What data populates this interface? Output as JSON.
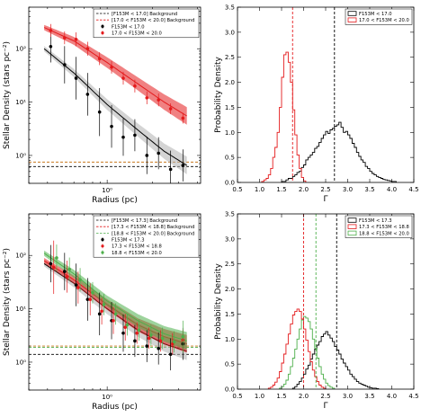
{
  "chart_data": [
    {
      "id": "density_top",
      "type": "scatter",
      "xlabel": "Radius (pc)",
      "ylabel": "Stellar Density (stars pc⁻²)",
      "xscale": "log",
      "yscale": "log",
      "xlim": [
        0.3,
        4.2
      ],
      "ylim": [
        0.3,
        600
      ],
      "x_ticks": [
        {
          "v": 1,
          "label": "10⁰"
        }
      ],
      "y_ticks": [
        {
          "v": 1,
          "label": "10⁰"
        },
        {
          "v": 10,
          "label": "10¹"
        },
        {
          "v": 100,
          "label": "10²"
        }
      ],
      "legend_position": "top-right",
      "legend": [
        {
          "label": "[F153M < 17.0] Background",
          "kind": "dashed",
          "color": "#000000"
        },
        {
          "label": "[17.0 < F153M < 20.0] Background",
          "kind": "dashed",
          "color": "#e41a1c"
        },
        {
          "label": "F153M < 17.0",
          "kind": "errorbar",
          "color": "#000000"
        },
        {
          "label": "17.0 < F153M < 20.0",
          "kind": "errorbar",
          "color": "#e41a1c"
        }
      ],
      "hlines": [
        {
          "y": 0.62,
          "color": "#000000"
        },
        {
          "y": 0.75,
          "color": "#c8781e"
        }
      ],
      "series": [
        {
          "name": "F153M < 17.0",
          "color": "#000000",
          "band": "#b0b0b0",
          "x": [
            0.42,
            0.52,
            0.62,
            0.74,
            0.89,
            1.07,
            1.28,
            1.53,
            1.84,
            2.2,
            2.65,
            3.2
          ],
          "y": [
            110,
            50,
            28,
            14,
            6.5,
            3.5,
            2.2,
            2.4,
            1.0,
            1.1,
            0.55,
            0.65
          ],
          "yerr": [
            0.3,
            0.35,
            0.4,
            0.4,
            0.45,
            0.4,
            0.35,
            0.3,
            0.35,
            0.3,
            0.35,
            0.3
          ],
          "fit": [
            [
              0.38,
              100
            ],
            [
              0.6,
              35
            ],
            [
              1.0,
              9
            ],
            [
              1.6,
              3
            ],
            [
              2.4,
              1.2
            ],
            [
              3.4,
              0.65
            ]
          ]
        },
        {
          "name": "17.0 < F153M < 20.0",
          "color": "#e41a1c",
          "band": "#e41a1c",
          "x": [
            0.42,
            0.52,
            0.62,
            0.74,
            0.89,
            1.07,
            1.28,
            1.53,
            1.84,
            2.2,
            2.65,
            3.2
          ],
          "y": [
            220,
            160,
            150,
            100,
            65,
            45,
            28,
            20,
            12,
            11,
            7.5,
            5
          ],
          "yerr": [
            0.12,
            0.12,
            0.13,
            0.13,
            0.12,
            0.12,
            0.12,
            0.12,
            0.12,
            0.12,
            0.1,
            0.1
          ],
          "fit": [
            [
              0.38,
              250
            ],
            [
              0.6,
              140
            ],
            [
              1.0,
              55
            ],
            [
              1.6,
              22
            ],
            [
              2.4,
              10
            ],
            [
              3.4,
              5.5
            ]
          ]
        }
      ]
    },
    {
      "id": "gamma_top",
      "type": "histogram",
      "xlabel": "Γ",
      "ylabel": "Probability Density",
      "xlim": [
        0.5,
        4.5
      ],
      "ylim": [
        0,
        3.5
      ],
      "x_ticks": [
        "0.5",
        "1.0",
        "1.5",
        "2.0",
        "2.5",
        "3.0",
        "3.5",
        "4.0",
        "4.5"
      ],
      "y_ticks": [
        "0.0",
        "0.5",
        "1.0",
        "1.5",
        "2.0",
        "2.5",
        "3.0",
        "3.5"
      ],
      "legend_position": "top-right",
      "series": [
        {
          "name": "F153M < 17.0",
          "color": "#000000",
          "bin_start": 1.5,
          "bin_width": 0.05,
          "values": [
            0.02,
            0.02,
            0.05,
            0.08,
            0.08,
            0.12,
            0.15,
            0.2,
            0.22,
            0.3,
            0.35,
            0.45,
            0.5,
            0.55,
            0.6,
            0.68,
            0.72,
            0.8,
            0.88,
            0.95,
            1.02,
            0.98,
            1.05,
            1.08,
            1.12,
            1.15,
            1.2,
            1.1,
            1.0,
            1.02,
            0.95,
            0.88,
            0.78,
            0.7,
            0.6,
            0.52,
            0.45,
            0.4,
            0.32,
            0.28,
            0.22,
            0.18,
            0.15,
            0.12,
            0.1,
            0.08,
            0.06,
            0.05,
            0.04,
            0.03,
            0.02,
            0.02
          ]
        },
        {
          "name": "17.0 < F153M < 20.0",
          "color": "#e41a1c",
          "bin_start": 1.05,
          "bin_width": 0.05,
          "values": [
            0.02,
            0.05,
            0.08,
            0.15,
            0.28,
            0.5,
            0.7,
            1.0,
            1.5,
            2.1,
            2.55,
            2.6,
            2.4,
            2.0,
            1.45,
            0.95,
            0.55,
            0.28,
            0.1,
            0.03
          ]
        }
      ],
      "vlines": [
        {
          "x": 1.75,
          "color": "#e41a1c"
        },
        {
          "x": 2.7,
          "color": "#000000"
        }
      ]
    },
    {
      "id": "density_bottom",
      "type": "scatter",
      "xlabel": "Radius (pc)",
      "ylabel": "Stellar Density (stars pc⁻²)",
      "xscale": "log",
      "yscale": "log",
      "xlim": [
        0.3,
        4.2
      ],
      "ylim": [
        0.3,
        600
      ],
      "x_ticks": [
        {
          "v": 1,
          "label": "10⁰"
        }
      ],
      "y_ticks": [
        {
          "v": 1,
          "label": "10⁰"
        },
        {
          "v": 10,
          "label": "10¹"
        },
        {
          "v": 100,
          "label": "10²"
        }
      ],
      "legend_position": "top-right",
      "legend": [
        {
          "label": "[F153M < 17.3] Background",
          "kind": "dashed",
          "color": "#000000"
        },
        {
          "label": "[17.3 < F153M < 18.8] Background",
          "kind": "dashed",
          "color": "#e41a1c"
        },
        {
          "label": "[18.8 < F153M < 20.0] Background",
          "kind": "dashed",
          "color": "#4daf4a"
        },
        {
          "label": "F153M < 17.3",
          "kind": "errorbar",
          "color": "#000000"
        },
        {
          "label": "17.3 < F153M < 18.8",
          "kind": "errorbar",
          "color": "#e41a1c"
        },
        {
          "label": "18.8 < F153M < 20.0",
          "kind": "errorbar",
          "color": "#4daf4a"
        }
      ],
      "hlines": [
        {
          "y": 1.4,
          "color": "#000000"
        },
        {
          "y": 1.9,
          "color": "#4daf4a"
        },
        {
          "y": 2.0,
          "color": "#c8781e"
        }
      ],
      "series": [
        {
          "name": "F153M < 17.3",
          "color": "#000000",
          "band": "#b0b0b0",
          "x": [
            0.42,
            0.52,
            0.62,
            0.74,
            0.89,
            1.07,
            1.28,
            1.53,
            1.84,
            2.2,
            2.65,
            3.2
          ],
          "y": [
            70,
            50,
            28,
            15,
            8,
            6,
            3.5,
            2.5,
            2.0,
            1.8,
            1.4,
            2.2
          ],
          "yerr": [
            0.35,
            0.35,
            0.4,
            0.4,
            0.4,
            0.35,
            0.35,
            0.3,
            0.3,
            0.3,
            0.3,
            0.3
          ],
          "fit": [
            [
              0.38,
              70
            ],
            [
              0.6,
              30
            ],
            [
              1.0,
              10
            ],
            [
              1.6,
              4
            ],
            [
              2.4,
              2.2
            ],
            [
              3.4,
              1.6
            ]
          ]
        },
        {
          "name": "17.3 < F153M < 18.8",
          "color": "#e41a1c",
          "band": "#e41a1c",
          "x": [
            0.44,
            0.54,
            0.64,
            0.77,
            0.92,
            1.1,
            1.32,
            1.58,
            1.9,
            2.27,
            2.73,
            3.2
          ],
          "y": [
            60,
            40,
            25,
            15,
            9,
            6,
            4.5,
            3.5,
            2.8,
            2.5,
            2.2,
            2.6
          ],
          "yerr": [
            0.5,
            0.3,
            0.3,
            0.3,
            0.25,
            0.25,
            0.25,
            0.2,
            0.2,
            0.2,
            0.2,
            0.2
          ],
          "fit": [
            [
              0.38,
              80
            ],
            [
              0.6,
              35
            ],
            [
              1.0,
              12
            ],
            [
              1.6,
              5
            ],
            [
              2.4,
              3
            ],
            [
              3.4,
              2.2
            ]
          ]
        },
        {
          "name": "18.8 < F153M < 20.0",
          "color": "#4daf4a",
          "band": "#4daf4a",
          "x": [
            0.46,
            0.56,
            0.66,
            0.8,
            0.95,
            1.14,
            1.36,
            1.63,
            1.96,
            2.34,
            2.8,
            3.2
          ],
          "y": [
            90,
            55,
            35,
            20,
            12,
            8,
            5,
            4,
            3.2,
            2.8,
            2.4,
            3.0
          ],
          "yerr": [
            0.25,
            0.22,
            0.22,
            0.2,
            0.2,
            0.2,
            0.2,
            0.2,
            0.2,
            0.2,
            0.2,
            0.3
          ],
          "fit": [
            [
              0.38,
              110
            ],
            [
              0.6,
              45
            ],
            [
              1.0,
              14
            ],
            [
              1.6,
              6
            ],
            [
              2.4,
              3.4
            ],
            [
              3.4,
              2.5
            ]
          ]
        }
      ]
    },
    {
      "id": "gamma_bottom",
      "type": "histogram",
      "xlabel": "Γ",
      "ylabel": "Probability Density",
      "xlim": [
        0.5,
        4.5
      ],
      "ylim": [
        0,
        3.5
      ],
      "x_ticks": [
        "0.5",
        "1.0",
        "1.5",
        "2.0",
        "2.5",
        "3.0",
        "3.5",
        "4.0",
        "4.5"
      ],
      "y_ticks": [
        "0.0",
        "0.5",
        "1.0",
        "1.5",
        "2.0",
        "2.5",
        "3.0",
        "3.5"
      ],
      "legend_position": "top-right",
      "series": [
        {
          "name": "F153M < 17.3",
          "color": "#000000",
          "bin_start": 1.75,
          "bin_width": 0.05,
          "values": [
            0.02,
            0.05,
            0.1,
            0.15,
            0.22,
            0.3,
            0.4,
            0.48,
            0.6,
            0.7,
            0.8,
            0.88,
            0.95,
            1.05,
            1.1,
            1.15,
            1.08,
            1.02,
            0.95,
            0.85,
            0.78,
            0.7,
            0.6,
            0.52,
            0.45,
            0.38,
            0.3,
            0.25,
            0.2,
            0.15,
            0.12,
            0.1,
            0.08,
            0.06,
            0.04,
            0.03,
            0.02,
            0.02,
            0.01
          ]
        },
        {
          "name": "17.3 < F153M < 18.8",
          "color": "#e41a1c",
          "bin_start": 1.2,
          "bin_width": 0.05,
          "values": [
            0.02,
            0.04,
            0.08,
            0.14,
            0.22,
            0.35,
            0.52,
            0.7,
            0.9,
            1.1,
            1.3,
            1.48,
            1.55,
            1.6,
            1.55,
            1.4,
            1.2,
            0.98,
            0.75,
            0.55,
            0.38,
            0.25,
            0.15,
            0.08,
            0.04,
            0.02
          ]
        },
        {
          "name": "18.8 < F153M < 20.0",
          "color": "#4daf4a",
          "bin_start": 1.45,
          "bin_width": 0.05,
          "values": [
            0.02,
            0.05,
            0.1,
            0.18,
            0.3,
            0.45,
            0.62,
            0.8,
            1.0,
            1.2,
            1.38,
            1.45,
            1.42,
            1.35,
            1.2,
            1.0,
            0.82,
            0.62,
            0.45,
            0.3,
            0.2,
            0.12,
            0.07,
            0.04,
            0.02
          ]
        }
      ],
      "vlines": [
        {
          "x": 2.0,
          "color": "#e41a1c"
        },
        {
          "x": 2.28,
          "color": "#4daf4a"
        },
        {
          "x": 2.75,
          "color": "#000000"
        }
      ]
    }
  ]
}
